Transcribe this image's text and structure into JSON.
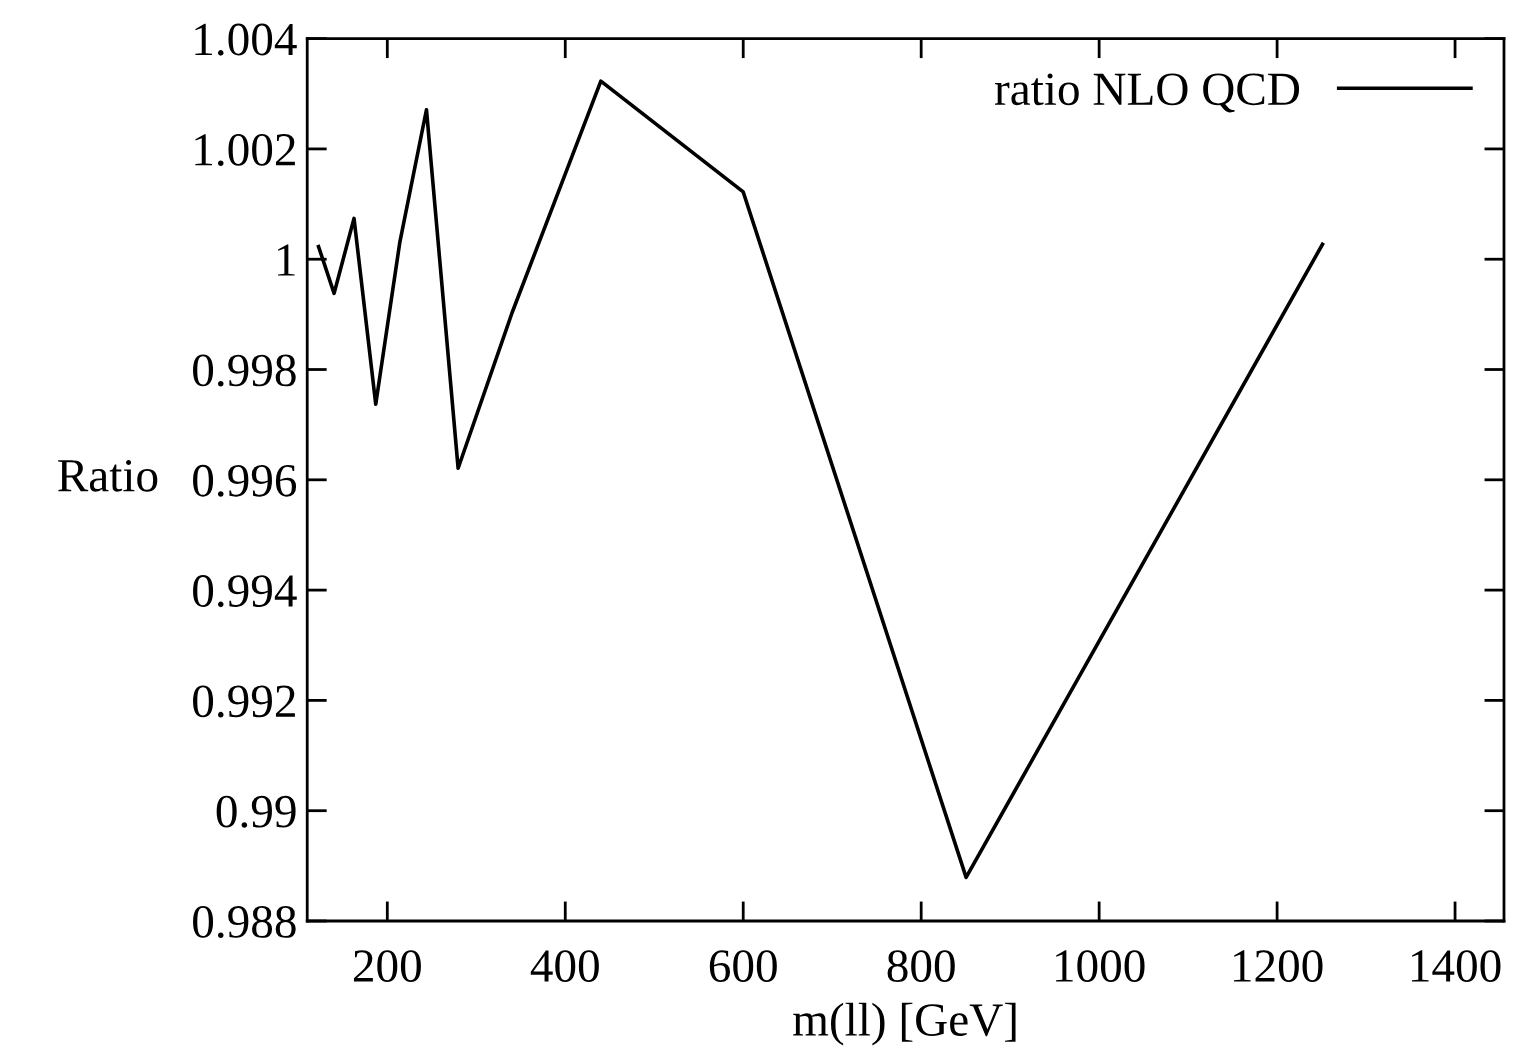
{
  "chart_data": {
    "type": "line",
    "xlabel": "m(ll) [GeV]",
    "ylabel": "Ratio",
    "x": [
      122.7,
      140.2,
      162.6,
      187,
      214,
      244,
      279.6,
      340,
      440,
      600,
      850.5,
      1251
    ],
    "series": [
      {
        "name": "ratio NLO QCD",
        "color": "#000000",
        "values": [
          1.00023,
          0.99938,
          1.00074,
          0.99737,
          1.0003,
          1.00271,
          0.99621,
          0.99902,
          1.00323,
          1.00122,
          0.98879,
          1.00027
        ]
      }
    ],
    "xlim": [
      110,
      1455
    ],
    "ylim": [
      0.988,
      1.004
    ],
    "xticks": [
      200,
      400,
      600,
      800,
      1000,
      1200,
      1400
    ],
    "yticks": [
      0.988,
      0.99,
      0.992,
      0.994,
      0.996,
      0.998,
      1,
      1.002,
      1.004
    ],
    "legend": "top right",
    "grid": false,
    "marker": "none",
    "line_style": "solid"
  }
}
